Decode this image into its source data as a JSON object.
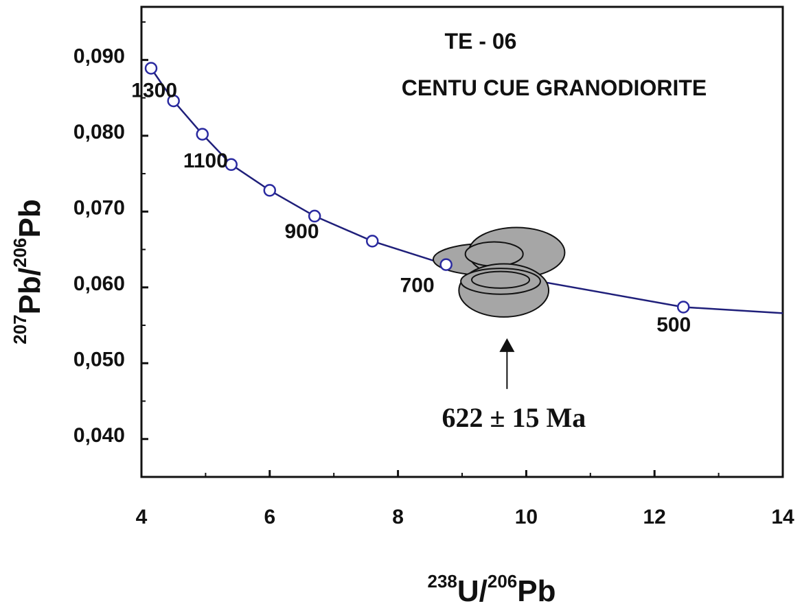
{
  "chart_data": {
    "type": "scatter",
    "subtype": "Tera-Wasserburg concordia diagram",
    "title_lines": [
      "TE - 06",
      "CENTU CUE  GRANODIORITE"
    ],
    "xlabel": {
      "sup1": "238",
      "base1": "U/",
      "sup2": "206",
      "base2": "Pb"
    },
    "ylabel": {
      "sup1": "207",
      "base1": "Pb/",
      "sup2": "206",
      "base2": "Pb"
    },
    "xlim": [
      4,
      14
    ],
    "ylim": [
      0.035,
      0.097
    ],
    "x_ticks": [
      {
        "value": 4,
        "label": "4"
      },
      {
        "value": 6,
        "label": "6"
      },
      {
        "value": 8,
        "label": "8"
      },
      {
        "value": 10,
        "label": "10"
      },
      {
        "value": 12,
        "label": "12"
      },
      {
        "value": 14,
        "label": "14"
      }
    ],
    "y_ticks": [
      {
        "value": 0.04,
        "label": "0,040"
      },
      {
        "value": 0.05,
        "label": "0,050"
      },
      {
        "value": 0.06,
        "label": "0,060"
      },
      {
        "value": 0.07,
        "label": "0,070"
      },
      {
        "value": 0.08,
        "label": "0,080"
      },
      {
        "value": 0.09,
        "label": "0,090"
      }
    ],
    "grid": false,
    "concordia_points": [
      {
        "x": 4.15,
        "y": 0.0889
      },
      {
        "x": 4.5,
        "y": 0.0846
      },
      {
        "x": 4.95,
        "y": 0.0802
      },
      {
        "x": 5.4,
        "y": 0.0762
      },
      {
        "x": 6.0,
        "y": 0.0728
      },
      {
        "x": 6.7,
        "y": 0.0694
      },
      {
        "x": 7.6,
        "y": 0.0661
      },
      {
        "x": 8.75,
        "y": 0.063
      },
      {
        "x": 12.45,
        "y": 0.0574
      }
    ],
    "concordia_tail": {
      "x": 14.0,
      "y": 0.0566
    },
    "age_labels": [
      {
        "text": "1300",
        "x": 4.2,
        "y": 0.0851
      },
      {
        "text": "1100",
        "x": 5.0,
        "y": 0.0758
      },
      {
        "text": "900",
        "x": 6.5,
        "y": 0.0665
      },
      {
        "text": "700",
        "x": 8.3,
        "y": 0.0594
      },
      {
        "text": "500",
        "x": 12.3,
        "y": 0.0542
      }
    ],
    "error_ellipses": [
      {
        "cx": 9.4,
        "cy": 0.0637,
        "rx": 0.85,
        "ry": 0.0021
      },
      {
        "cx": 9.85,
        "cy": 0.0646,
        "rx": 0.75,
        "ry": 0.0033
      },
      {
        "cx": 9.5,
        "cy": 0.0644,
        "rx": 0.45,
        "ry": 0.0016
      },
      {
        "cx": 9.65,
        "cy": 0.0596,
        "rx": 0.7,
        "ry": 0.0035
      },
      {
        "cx": 9.6,
        "cy": 0.0608,
        "rx": 0.62,
        "ry": 0.0017
      },
      {
        "cx": 9.6,
        "cy": 0.061,
        "rx": 0.45,
        "ry": 0.0011
      }
    ],
    "annotation": {
      "text": "622 ± 15 Ma",
      "arrow_from": {
        "x": 9.7,
        "y": 0.0466
      },
      "arrow_to": {
        "x": 9.7,
        "y": 0.0533
      }
    },
    "colors": {
      "curve": "#1f1f7a",
      "marker": "#2a2aa0",
      "ellipse_fill": "#a6a6a6",
      "ellipse_stroke": "#111111",
      "axis": "#111111"
    }
  }
}
